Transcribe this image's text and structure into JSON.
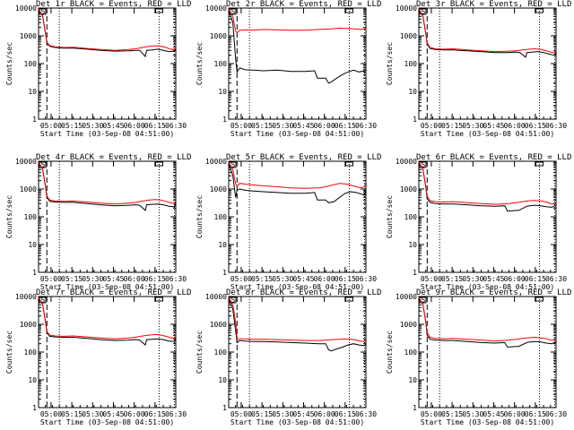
{
  "chart_data": {
    "type": "line",
    "yscale": "log",
    "ylim": [
      1,
      10000
    ],
    "ylabel": "Counts/sec",
    "xlabel": "Start Time (03-Sep-08 04:51:00)",
    "x_tick_labels": [
      "05:00",
      "05:15",
      "05:30",
      "05:45",
      "06:00",
      "06:15",
      "06:30"
    ],
    "y_tick_labels": [
      "1",
      "10",
      "100",
      "1000",
      "10000"
    ],
    "y_tick_values": [
      1,
      10,
      100,
      1000,
      10000
    ],
    "x_ticks_min": [
      9,
      24,
      39,
      54,
      69,
      84,
      99
    ],
    "xlim_min": [
      0,
      99
    ],
    "vlines_min": [
      6,
      15,
      87,
      98
    ],
    "flag_label": "S",
    "series_colors": {
      "events": "#000000",
      "lld": "#ff0000"
    },
    "panels": [
      {
        "title": "Det 1r BLACK = Events, RED = LLD",
        "series": [
          {
            "color": "black",
            "x": [
              0,
              3,
              5,
              6,
              8,
              12,
              18,
              25,
              35,
              45,
              55,
              65,
              70,
              73,
              77,
              78,
              82,
              86,
              90,
              94,
              98,
              99
            ],
            "y": [
              9500,
              5000,
              1200,
              550,
              420,
              380,
              360,
              360,
              330,
              300,
              280,
              290,
              300,
              300,
              180,
              300,
              310,
              330,
              300,
              270,
              280,
              350
            ]
          },
          {
            "color": "red",
            "x": [
              0,
              3,
              5,
              6,
              8,
              12,
              18,
              25,
              35,
              45,
              55,
              65,
              70,
              75,
              80,
              84,
              88,
              92,
              95,
              98,
              99
            ],
            "y": [
              9500,
              5200,
              1300,
              600,
              450,
              400,
              380,
              390,
              350,
              320,
              300,
              320,
              340,
              380,
              420,
              440,
              430,
              380,
              330,
              320,
              400
            ]
          }
        ]
      },
      {
        "title": "Det 2r BLACK = Events, RED = LLD",
        "series": [
          {
            "color": "black",
            "x": [
              0,
              3,
              5,
              6,
              8,
              12,
              18,
              25,
              35,
              45,
              55,
              62,
              64,
              70,
              72,
              74,
              78,
              82,
              86,
              90,
              94,
              98,
              99
            ],
            "y": [
              9000,
              3000,
              150,
              50,
              70,
              60,
              58,
              55,
              58,
              52,
              52,
              55,
              30,
              30,
              20,
              22,
              30,
              40,
              50,
              58,
              50,
              55,
              60
            ]
          },
          {
            "color": "red",
            "x": [
              0,
              3,
              5,
              6,
              8,
              12,
              18,
              25,
              35,
              45,
              55,
              65,
              70,
              75,
              80,
              85,
              90,
              95,
              98,
              99
            ],
            "y": [
              9500,
              5000,
              1500,
              1300,
              1600,
              1650,
              1600,
              1700,
              1650,
              1600,
              1600,
              1700,
              1750,
              1800,
              1900,
              1850,
              1800,
              1700,
              1750,
              2000
            ]
          }
        ]
      },
      {
        "title": "Det 3r BLACK = Events, RED = LLD",
        "series": [
          {
            "color": "black",
            "x": [
              0,
              3,
              5,
              6,
              8,
              12,
              18,
              25,
              35,
              45,
              55,
              65,
              70,
              73,
              77,
              78,
              82,
              86,
              90,
              94,
              98,
              99
            ],
            "y": [
              9500,
              5000,
              1200,
              500,
              350,
              320,
              310,
              310,
              290,
              270,
              250,
              250,
              260,
              250,
              170,
              250,
              260,
              270,
              250,
              220,
              200,
              260
            ]
          },
          {
            "color": "red",
            "x": [
              0,
              3,
              5,
              6,
              8,
              12,
              18,
              25,
              35,
              45,
              55,
              65,
              70,
              75,
              80,
              84,
              88,
              92,
              95,
              98,
              99
            ],
            "y": [
              9500,
              5200,
              1300,
              550,
              380,
              340,
              330,
              340,
              310,
              290,
              270,
              280,
              290,
              310,
              330,
              340,
              320,
              290,
              260,
              240,
              300
            ]
          }
        ]
      },
      {
        "title": "Det 4r BLACK = Events, RED = LLD",
        "series": [
          {
            "color": "black",
            "x": [
              0,
              3,
              5,
              6,
              8,
              12,
              18,
              25,
              35,
              45,
              55,
              65,
              70,
              73,
              77,
              78,
              82,
              86,
              90,
              94,
              98,
              99
            ],
            "y": [
              9500,
              5000,
              1200,
              500,
              360,
              340,
              330,
              330,
              300,
              270,
              250,
              260,
              270,
              260,
              170,
              270,
              280,
              290,
              270,
              240,
              230,
              300
            ]
          },
          {
            "color": "red",
            "x": [
              0,
              3,
              5,
              6,
              8,
              12,
              18,
              25,
              35,
              45,
              55,
              65,
              70,
              75,
              80,
              84,
              88,
              92,
              95,
              98,
              99
            ],
            "y": [
              9500,
              5200,
              1300,
              550,
              400,
              370,
              360,
              370,
              340,
              310,
              290,
              310,
              330,
              370,
              400,
              420,
              400,
              360,
              320,
              300,
              380
            ]
          }
        ]
      },
      {
        "title": "Det 5r BLACK = Events, RED = LLD",
        "series": [
          {
            "color": "black",
            "x": [
              0,
              3,
              5,
              6,
              8,
              12,
              18,
              25,
              35,
              45,
              55,
              62,
              64,
              70,
              72,
              76,
              80,
              84,
              88,
              92,
              96,
              98,
              99
            ],
            "y": [
              9000,
              3000,
              500,
              900,
              1000,
              900,
              850,
              800,
              750,
              700,
              700,
              750,
              400,
              400,
              320,
              350,
              500,
              700,
              800,
              750,
              650,
              600,
              900
            ]
          },
          {
            "color": "red",
            "x": [
              0,
              3,
              5,
              6,
              8,
              12,
              18,
              25,
              35,
              45,
              55,
              65,
              70,
              75,
              80,
              85,
              90,
              95,
              98,
              99
            ],
            "y": [
              9500,
              5000,
              1500,
              1300,
              1600,
              1500,
              1400,
              1300,
              1200,
              1100,
              1050,
              1100,
              1200,
              1400,
              1600,
              1500,
              1300,
              1100,
              1200,
              1800
            ]
          }
        ]
      },
      {
        "title": "Det 6r BLACK = Events, RED = LLD",
        "series": [
          {
            "color": "black",
            "x": [
              0,
              3,
              5,
              6,
              8,
              12,
              18,
              25,
              35,
              45,
              55,
              62,
              64,
              70,
              72,
              78,
              80,
              84,
              88,
              92,
              96,
              99
            ],
            "y": [
              9500,
              5000,
              1200,
              450,
              330,
              300,
              290,
              290,
              270,
              250,
              240,
              250,
              160,
              170,
              170,
              240,
              250,
              260,
              250,
              230,
              220,
              260
            ]
          },
          {
            "color": "red",
            "x": [
              0,
              3,
              5,
              6,
              8,
              12,
              18,
              25,
              35,
              45,
              55,
              65,
              70,
              75,
              80,
              84,
              88,
              92,
              95,
              98,
              99
            ],
            "y": [
              9500,
              5200,
              1300,
              550,
              380,
              350,
              340,
              350,
              320,
              300,
              280,
              300,
              320,
              350,
              380,
              390,
              370,
              340,
              300,
              290,
              340
            ]
          }
        ]
      },
      {
        "title": "Det 7r BLACK = Events, RED = LLD",
        "series": [
          {
            "color": "black",
            "x": [
              0,
              3,
              5,
              6,
              8,
              12,
              18,
              25,
              35,
              45,
              55,
              65,
              70,
              73,
              77,
              78,
              82,
              86,
              90,
              94,
              98,
              99
            ],
            "y": [
              9500,
              5000,
              1200,
              500,
              370,
              350,
              340,
              340,
              310,
              280,
              260,
              270,
              280,
              270,
              180,
              280,
              290,
              300,
              280,
              250,
              240,
              310
            ]
          },
          {
            "color": "red",
            "x": [
              0,
              3,
              5,
              6,
              8,
              12,
              18,
              25,
              35,
              45,
              55,
              65,
              70,
              75,
              80,
              84,
              88,
              92,
              95,
              98,
              99
            ],
            "y": [
              9500,
              5200,
              1300,
              550,
              410,
              380,
              370,
              380,
              350,
              320,
              300,
              320,
              340,
              380,
              410,
              430,
              410,
              370,
              330,
              310,
              390
            ]
          }
        ]
      },
      {
        "title": "Det 8r BLACK = Events, RED = LLD",
        "series": [
          {
            "color": "black",
            "x": [
              0,
              3,
              5,
              6,
              8,
              12,
              18,
              25,
              35,
              45,
              55,
              65,
              70,
              72,
              74,
              78,
              82,
              86,
              90,
              94,
              98,
              99
            ],
            "y": [
              9000,
              3500,
              600,
              220,
              260,
              250,
              240,
              240,
              230,
              220,
              210,
              200,
              200,
              120,
              110,
              130,
              150,
              180,
              200,
              180,
              170,
              200
            ]
          },
          {
            "color": "red",
            "x": [
              0,
              3,
              5,
              6,
              8,
              12,
              18,
              25,
              35,
              45,
              55,
              65,
              70,
              75,
              80,
              84,
              88,
              92,
              95,
              98,
              99
            ],
            "y": [
              9500,
              5000,
              1200,
              280,
              300,
              300,
              290,
              290,
              280,
              270,
              260,
              260,
              270,
              280,
              290,
              300,
              290,
              270,
              250,
              240,
              290
            ]
          }
        ]
      },
      {
        "title": "Det 9r BLACK = Events, RED = LLD",
        "series": [
          {
            "color": "black",
            "x": [
              0,
              3,
              5,
              6,
              8,
              12,
              18,
              25,
              35,
              45,
              55,
              62,
              64,
              70,
              72,
              78,
              80,
              84,
              88,
              92,
              96,
              99
            ],
            "y": [
              9500,
              5000,
              1200,
              400,
              290,
              270,
              260,
              260,
              240,
              220,
              210,
              220,
              150,
              160,
              160,
              220,
              230,
              240,
              230,
              210,
              200,
              240
            ]
          },
          {
            "color": "red",
            "x": [
              0,
              3,
              5,
              6,
              8,
              12,
              18,
              25,
              35,
              45,
              55,
              65,
              70,
              75,
              80,
              84,
              88,
              92,
              95,
              98,
              99
            ],
            "y": [
              9500,
              5200,
              1300,
              500,
              340,
              310,
              300,
              310,
              290,
              270,
              250,
              270,
              290,
              310,
              330,
              340,
              320,
              300,
              270,
              260,
              300
            ]
          }
        ]
      }
    ]
  }
}
